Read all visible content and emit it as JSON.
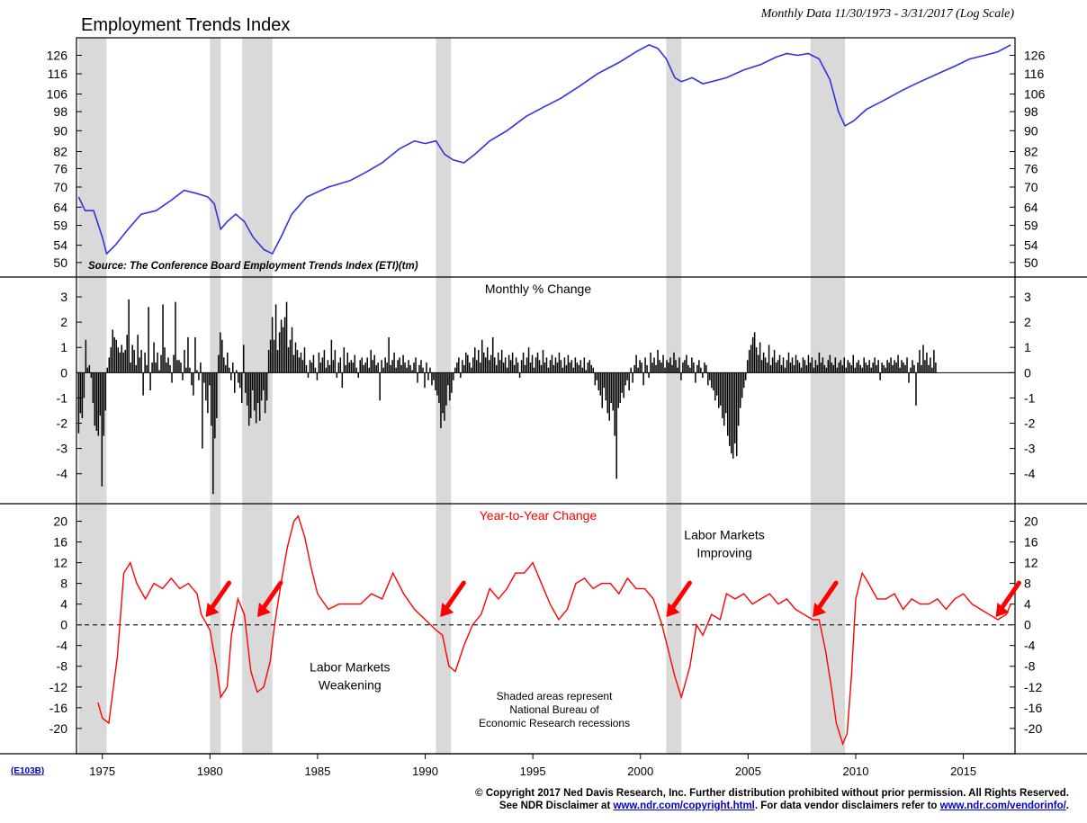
{
  "header": {
    "title": "Employment Trends Index",
    "subtitle": "Monthly Data 11/30/1973 - 3/31/2017 (Log Scale)"
  },
  "footer": {
    "chart_code": "(E103B)",
    "copyright": "© Copyright 2017 Ned Davis Research, Inc.  Further distribution prohibited without prior permission.  All Rights Reserved.",
    "disclaimer_prefix": "See NDR Disclaimer at ",
    "disclaimer_link": "www.ndr.com/copyright.html",
    "disclaimer_middle": ". For data vendor disclaimers refer to ",
    "vendor_link": "www.ndr.com/vendorinfo/",
    "disclaimer_suffix": "."
  },
  "colors": {
    "eti_line": "#3333dd",
    "yoy_line": "#ff0000",
    "monthly_bars": "#000000",
    "recession_shade": "#d9d9d9",
    "arrow": "#ff0000"
  },
  "chart_data": [
    {
      "type": "line",
      "scale": "log",
      "title": "",
      "source_note": "Source: The Conference Board Employment Trends Index (ETI)(tm)",
      "yticks": [
        50,
        54,
        59,
        64,
        70,
        76,
        82,
        90,
        98,
        106,
        116,
        126
      ],
      "ylim": [
        48,
        133
      ],
      "series": [
        {
          "x": [
            1973.9,
            1974.2,
            1974.6,
            1975.0,
            1975.2,
            1975.6,
            1976.2,
            1976.8,
            1977.5,
            1978.2,
            1978.8,
            1979.4,
            1979.9,
            1980.2,
            1980.5,
            1980.8,
            1981.2,
            1981.6,
            1982.0,
            1982.5,
            1982.9,
            1983.3,
            1983.8,
            1984.5,
            1985.5,
            1986.5,
            1987.3,
            1988.0,
            1988.8,
            1989.5,
            1990.0,
            1990.5,
            1990.9,
            1991.3,
            1991.8,
            1992.3,
            1993.0,
            1993.8,
            1994.7,
            1995.5,
            1996.3,
            1997.2,
            1998.0,
            1999.0,
            1999.8,
            2000.4,
            2000.8,
            2001.2,
            2001.6,
            2001.9,
            2002.4,
            2002.9,
            2003.3,
            2004.0,
            2004.8,
            2005.6,
            2006.3,
            2006.8,
            2007.3,
            2007.8,
            2008.3,
            2008.8,
            2009.2,
            2009.5,
            2009.9,
            2010.5,
            2011.3,
            2012.2,
            2013.0,
            2013.8,
            2014.6,
            2015.3,
            2016.0,
            2016.6,
            2017.2
          ],
          "y": [
            67,
            63,
            63,
            56,
            52,
            54,
            58,
            62,
            63,
            66,
            69,
            68,
            67,
            65,
            58,
            60,
            62,
            60,
            56,
            53,
            52,
            56,
            62,
            67,
            70,
            72,
            75,
            78,
            83,
            86,
            85,
            86,
            81,
            79,
            78,
            81,
            86,
            90,
            96,
            100,
            104,
            110,
            116,
            122,
            128,
            132,
            130,
            124,
            114,
            112,
            114,
            111,
            112,
            114,
            118,
            121,
            125,
            127,
            126,
            127,
            124,
            113,
            98,
            92,
            94,
            99,
            103,
            108,
            112,
            116,
            120,
            124,
            126,
            128,
            132
          ]
        }
      ]
    },
    {
      "type": "bar",
      "title": "Monthly % Change",
      "yticks": [
        -4,
        -3,
        -2,
        -1,
        0,
        1,
        2,
        3
      ],
      "ylim": [
        -4.9,
        3.5
      ],
      "series": [
        {
          "x_start": 1973.9,
          "x_step": 0.0833,
          "values": [
            -2.4,
            -1.6,
            -1.8,
            -1.0,
            1.3,
            0.2,
            0.3,
            -0.2,
            -1.2,
            -2.1,
            -2.3,
            -2.5,
            -1.7,
            -4.5,
            -2.5,
            -1.5,
            0.2,
            0.6,
            1.0,
            1.7,
            1.4,
            1.3,
            1.0,
            0.8,
            1.1,
            0.8,
            0.9,
            1.5,
            2.9,
            0.4,
            1.1,
            0.9,
            0.3,
            1.5,
            0.6,
            0.9,
            -0.9,
            0.8,
            0.3,
            2.6,
            -0.7,
            0.4,
            1.2,
            0.4,
            0.8,
            0.1,
            0.7,
            2.7,
            1.0,
            0.4,
            0.6,
            0.3,
            -0.4,
            0.7,
            2.8,
            0.5,
            0.5,
            0.4,
            -0.3,
            0.9,
            0.2,
            1.4,
            0.2,
            -0.5,
            -0.9,
            1.4,
            0.1,
            -0.3,
            0.4,
            -3.0,
            -0.4,
            -1.1,
            -1.6,
            -0.5,
            -2.1,
            -4.8,
            -2.6,
            -1.8,
            0.7,
            1.6,
            1.3,
            0.6,
            0.3,
            0.8,
            0.2,
            -0.3,
            0.4,
            -0.8,
            0.1,
            -0.4,
            -0.6,
            -1.2,
            1.1,
            -0.8,
            -1.3,
            -2.1,
            -1.8,
            -0.7,
            -1.5,
            -2.0,
            -1.2,
            -1.9,
            -1.1,
            -0.7,
            -1.6,
            -1.1,
            0.9,
            1.3,
            2.2,
            1.3,
            2.7,
            0.9,
            1.6,
            2.1,
            1.8,
            2.2,
            2.8,
            1.0,
            1.3,
            1.8,
            0.7,
            1.2,
            0.9,
            0.6,
            0.8,
            0.5,
            1.0,
            0.3,
            -0.2,
            0.5,
            0.4,
            0.7,
            0.2,
            -0.3,
            0.8,
            0.4,
            0.6,
            0.9,
            0.2,
            0.5,
            0.3,
            1.3,
            0.5,
            0.9,
            -0.2,
            0.4,
            0.6,
            -0.6,
            1.0,
            0.3,
            0.8,
            0.4,
            0.5,
            0.4,
            0.7,
            0.2,
            -0.2,
            0.5,
            0.6,
            0.3,
            0.4,
            0.6,
            0.2,
            0.9,
            0.5,
            0.7,
            0.3,
            0.4,
            -1.1,
            0.5,
            0.2,
            0.6,
            0.4,
            1.4,
            0.3,
            0.5,
            0.8,
            0.2,
            0.5,
            0.6,
            0.3,
            0.7,
            0.4,
            0.2,
            0.5,
            0.3,
            0.1,
            0.4,
            0.6,
            -0.4,
            0.3,
            0.5,
            0.2,
            -0.6,
            0.4,
            -0.3,
            0.2,
            -0.5,
            -0.3,
            -0.7,
            -0.9,
            -1.2,
            -2.2,
            -1.6,
            -1.9,
            -1.3,
            -0.5,
            -1.1,
            -0.8,
            -0.3,
            0.2,
            0.4,
            0.6,
            -0.2,
            0.5,
            0.3,
            0.8,
            0.7,
            0.4,
            0.2,
            0.6,
            1.0,
            0.5,
            0.9,
            0.4,
            1.3,
            0.8,
            0.6,
            1.0,
            0.5,
            0.7,
            1.4,
            0.6,
            0.3,
            0.8,
            0.5,
            0.9,
            0.4,
            0.6,
            0.2,
            0.7,
            0.5,
            0.8,
            0.3,
            0.6,
            0.4,
            -0.2,
            0.5,
            0.8,
            0.3,
            0.6,
            1.0,
            0.4,
            0.7,
            0.2,
            0.6,
            0.8,
            0.5,
            0.3,
            0.9,
            0.4,
            0.6,
            0.2,
            0.5,
            0.7,
            0.3,
            0.6,
            0.4,
            0.8,
            0.5,
            0.2,
            0.6,
            0.3,
            0.7,
            0.4,
            0.5,
            0.2,
            0.6,
            0.4,
            0.3,
            0.5,
            0.2,
            0.6,
            0.1,
            0.4,
            0.5,
            0.3,
            0.2,
            -0.5,
            -0.3,
            -0.7,
            -0.9,
            -1.4,
            -0.6,
            -1.1,
            -1.6,
            -1.9,
            -1.2,
            -1.5,
            -2.5,
            -4.2,
            -1.4,
            -1.2,
            -0.8,
            -1.0,
            -0.5,
            -0.3,
            -0.7,
            0.2,
            -0.4,
            0.3,
            0.7,
            0.2,
            0.5,
            0.4,
            -0.5,
            0.6,
            0.3,
            -0.2,
            0.8,
            0.4,
            0.6,
            0.3,
            0.9,
            0.5,
            0.4,
            0.7,
            0.2,
            0.5,
            0.4,
            0.6,
            0.3,
            0.8,
            0.5,
            0.2,
            0.6,
            -0.3,
            0.4,
            0.5,
            0.7,
            0.3,
            0.2,
            0.6,
            0.4,
            -0.4,
            0.3,
            0.5,
            0.2,
            -0.2,
            0.4,
            0.3,
            -0.5,
            -0.3,
            -0.6,
            -0.7,
            -1.1,
            -0.9,
            -1.4,
            -1.3,
            -1.8,
            -2.1,
            -1.6,
            -2.5,
            -2.9,
            -3.2,
            -3.4,
            -2.8,
            -3.3,
            -2.1,
            -1.4,
            -1.0,
            -0.6,
            -0.3,
            0.5,
            0.9,
            1.1,
            1.4,
            1.6,
            1.0,
            0.7,
            1.2,
            0.5,
            0.8,
            0.6,
            0.4,
            1.1,
            0.3,
            0.6,
            0.9,
            0.4,
            0.5,
            0.7,
            0.3,
            0.6,
            0.2,
            0.5,
            0.8,
            0.4,
            0.6,
            0.3,
            0.7,
            0.5,
            0.4,
            0.2,
            0.6,
            0.5,
            0.3,
            0.7,
            0.4,
            0.6,
            0.2,
            0.5,
            0.3,
            0.8,
            0.4,
            0.6,
            0.3,
            0.2,
            0.5,
            0.7,
            0.4,
            0.3,
            0.6,
            0.2,
            0.4,
            0.5,
            0.3,
            0.6,
            0.2,
            0.5,
            0.4,
            0.3,
            0.7,
            0.2,
            0.4,
            0.5,
            0.3,
            0.2,
            0.6,
            0.4,
            0.3,
            0.5,
            0.2,
            0.4,
            0.6,
            0.3,
            0.5,
            -0.3,
            0.4,
            0.3,
            0.2,
            0.5,
            0.4,
            0.6,
            0.3,
            0.5,
            0.4,
            0.7,
            0.2,
            0.5,
            0.4,
            0.3,
            0.6,
            -0.4,
            0.2,
            0.5,
            0.3,
            -1.3,
            0.4,
            0.9,
            0.3,
            1.1,
            0.5,
            0.8,
            0.3,
            0.6,
            0.2,
            0.9,
            0.4
          ]
        }
      ]
    },
    {
      "type": "line",
      "title": "Year-to-Year Change",
      "yticks": [
        -20,
        -16,
        -12,
        -8,
        -4,
        0,
        4,
        8,
        12,
        16,
        20
      ],
      "ylim": [
        -23.5,
        22
      ],
      "reference_line": 0,
      "annotations": [
        {
          "text": [
            "Labor Markets",
            "Improving"
          ],
          "x": 2003.9,
          "y": 16.5
        },
        {
          "text": [
            "Labor Markets",
            "Weakening"
          ],
          "x": 1986.5,
          "y": -9.0
        },
        {
          "text": [
            "Shaded areas represent",
            "National Bureau of",
            "Economic Research recessions"
          ],
          "x": 1996.0,
          "y": -14.5
        }
      ],
      "arrows_at": [
        1979.8,
        1982.2,
        1990.7,
        2001.2,
        2008.0,
        2016.5
      ],
      "series": [
        {
          "x": [
            1974.8,
            1975.0,
            1975.3,
            1975.7,
            1976.0,
            1976.3,
            1976.6,
            1977.0,
            1977.4,
            1977.8,
            1978.2,
            1978.6,
            1979.0,
            1979.4,
            1979.6,
            1980.0,
            1980.3,
            1980.5,
            1980.8,
            1981.0,
            1981.3,
            1981.6,
            1981.9,
            1982.2,
            1982.5,
            1982.8,
            1983.0,
            1983.3,
            1983.6,
            1983.9,
            1984.1,
            1984.4,
            1984.7,
            1985.0,
            1985.5,
            1986.0,
            1986.5,
            1987.0,
            1987.5,
            1988.0,
            1988.5,
            1989.0,
            1989.5,
            1990.0,
            1990.5,
            1990.8,
            1991.1,
            1991.4,
            1991.8,
            1992.2,
            1992.6,
            1993.0,
            1993.4,
            1993.8,
            1994.2,
            1994.6,
            1995.0,
            1995.4,
            1995.8,
            1996.2,
            1996.6,
            1997.0,
            1997.4,
            1997.8,
            1998.2,
            1998.6,
            1999.0,
            1999.4,
            1999.8,
            2000.2,
            2000.6,
            2001.0,
            2001.3,
            2001.6,
            2001.9,
            2002.3,
            2002.6,
            2002.9,
            2003.3,
            2003.7,
            2004.0,
            2004.4,
            2004.8,
            2005.2,
            2005.6,
            2006.0,
            2006.4,
            2006.8,
            2007.2,
            2007.6,
            2008.0,
            2008.3,
            2008.6,
            2008.9,
            2009.1,
            2009.4,
            2009.6,
            2009.8,
            2010.0,
            2010.3,
            2010.6,
            2011.0,
            2011.4,
            2011.8,
            2012.2,
            2012.6,
            2013.0,
            2013.4,
            2013.8,
            2014.2,
            2014.6,
            2015.0,
            2015.4,
            2015.8,
            2016.2,
            2016.6,
            2017.0,
            2017.2
          ],
          "y": [
            -15,
            -18,
            -19,
            -6,
            10,
            12,
            8,
            5,
            8,
            7,
            9,
            7,
            8,
            6,
            2,
            -1,
            -8,
            -14,
            -12,
            -2,
            5,
            2,
            -9,
            -13,
            -12,
            -7,
            0,
            8,
            15,
            20,
            21,
            17,
            11,
            6,
            3,
            4,
            4,
            4,
            6,
            5,
            10,
            6,
            3,
            1,
            -1,
            -2,
            -8,
            -9,
            -4,
            0,
            2,
            7,
            5,
            7,
            10,
            10,
            12,
            8,
            4,
            1,
            3,
            8,
            9,
            7,
            8,
            8,
            6,
            9,
            7,
            7,
            5,
            0,
            -5,
            -10,
            -14,
            -8,
            0,
            -2,
            2,
            1,
            6,
            5,
            6,
            4,
            5,
            6,
            4,
            5,
            3,
            2,
            1,
            1,
            -5,
            -13,
            -19,
            -23,
            -21,
            -10,
            5,
            10,
            8,
            5,
            5,
            6,
            3,
            5,
            4,
            4,
            5,
            3,
            5,
            6,
            4,
            3,
            2,
            1,
            2,
            4
          ]
        }
      ]
    }
  ],
  "x_axis": {
    "tick_years": [
      1975,
      1980,
      1985,
      1990,
      1995,
      2000,
      2005,
      2010,
      2015
    ],
    "range": [
      1973.8,
      2017.4
    ]
  },
  "recessions": [
    [
      1973.9,
      1975.2
    ],
    [
      1980.0,
      1980.5
    ],
    [
      1981.5,
      1982.9
    ],
    [
      1990.5,
      1991.2
    ],
    [
      2001.2,
      2001.9
    ],
    [
      2007.9,
      2009.5
    ]
  ]
}
